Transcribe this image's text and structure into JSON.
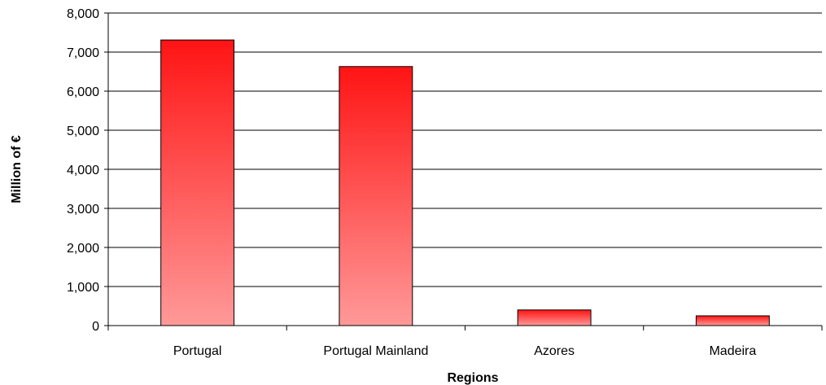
{
  "chart_data": {
    "type": "bar",
    "title": "",
    "xlabel": "Regions",
    "ylabel": "Million of €",
    "categories": [
      "Portugal",
      "Portugal Mainland",
      "Azores",
      "Madeira"
    ],
    "values": [
      7310,
      6630,
      400,
      250
    ],
    "ylim": [
      0,
      8000
    ],
    "yticks": [
      0,
      1000,
      2000,
      3000,
      4000,
      5000,
      6000,
      7000,
      8000
    ],
    "ytick_labels": [
      "0",
      "1,000",
      "2,000",
      "3,000",
      "4,000",
      "5,000",
      "6,000",
      "7,000",
      "8,000"
    ],
    "grid": true,
    "legend": "none",
    "colors": {
      "bar_top": "#ff1414",
      "bar_bottom": "#ff9999",
      "bar_edge": "#000000",
      "grid": "#000000",
      "axis": "#000000"
    }
  }
}
